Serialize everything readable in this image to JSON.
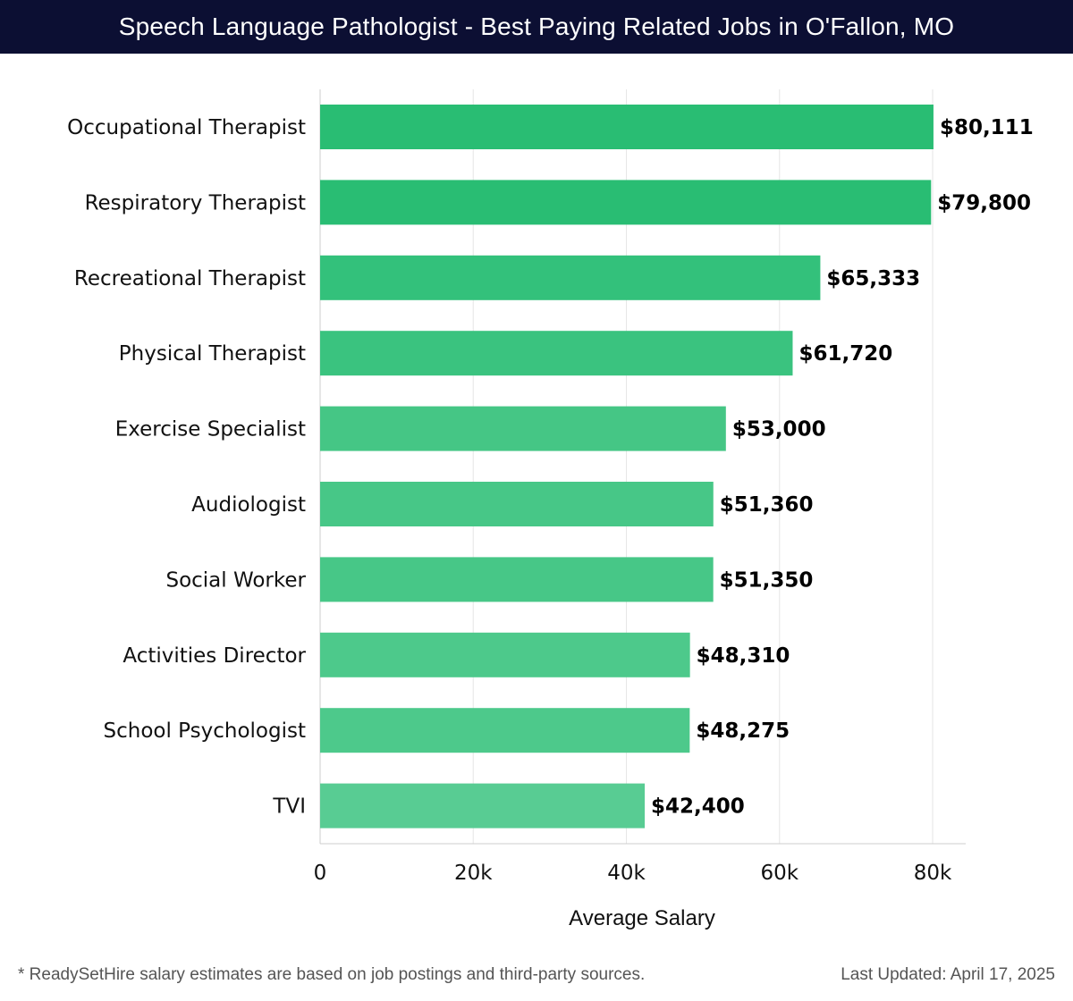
{
  "header": {
    "title": "Speech Language Pathologist - Best Paying Related Jobs in O'Fallon, MO"
  },
  "chart_data": {
    "type": "bar",
    "orientation": "horizontal",
    "title": "Speech Language Pathologist - Best Paying Related Jobs in O'Fallon, MO",
    "categories": [
      "Occupational Therapist",
      "Respiratory Therapist",
      "Recreational Therapist",
      "Physical Therapist",
      "Exercise Specialist",
      "Audiologist",
      "Social Worker",
      "Activities Director",
      "School Psychologist",
      "TVI"
    ],
    "values": [
      80111,
      79800,
      65333,
      61720,
      53000,
      51360,
      51350,
      48310,
      48275,
      42400
    ],
    "value_labels": [
      "$80,111",
      "$79,800",
      "$65,333",
      "$61,720",
      "$53,000",
      "$51,360",
      "$51,350",
      "$48,310",
      "$48,275",
      "$42,400"
    ],
    "xlabel": "Average Salary",
    "ylabel": "",
    "xlim": [
      0,
      84000
    ],
    "xticks": [
      0,
      20000,
      40000,
      60000,
      80000
    ],
    "xtick_labels": [
      "0",
      "20k",
      "40k",
      "60k",
      "80k"
    ],
    "grid": true,
    "bar_colors": [
      "#29bd73",
      "#29bd73",
      "#33c17b",
      "#3ac37f",
      "#45c685",
      "#47c787",
      "#47c787",
      "#4dc98b",
      "#4dc98b",
      "#58cc93"
    ]
  },
  "footer": {
    "note": "* ReadySetHire salary estimates are based on job postings and third-party sources.",
    "updated": "Last Updated: April 17, 2025"
  }
}
